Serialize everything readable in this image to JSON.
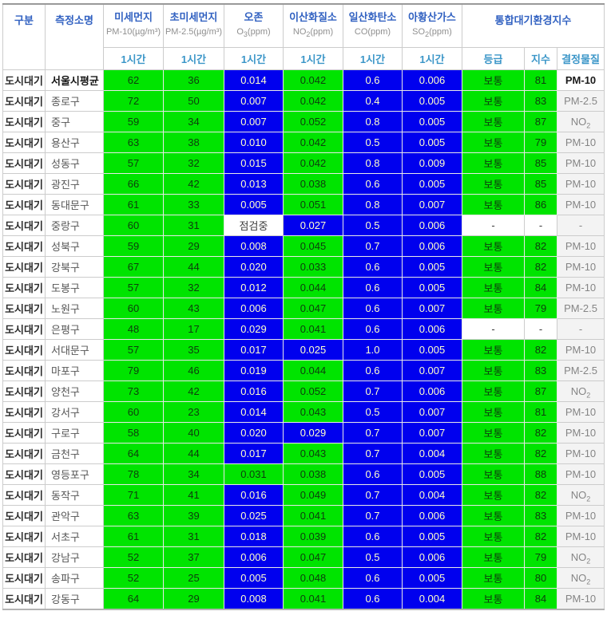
{
  "header": {
    "category": "구분",
    "station": "측정소명",
    "pollutants": [
      {
        "label": "미세먼지",
        "unit": "PM-10(µg/m³)"
      },
      {
        "label": "초미세먼지",
        "unit": "PM-2.5(µg/m³)"
      },
      {
        "label": "오존",
        "unit": "O3(ppm)"
      },
      {
        "label": "이산화질소",
        "unit": "NO2(ppm)"
      },
      {
        "label": "일산화탄소",
        "unit": "CO(ppm)"
      },
      {
        "label": "아황산가스",
        "unit": "SO2(ppm)"
      }
    ],
    "cai_group": "통합대기환경지수",
    "hour": "1시간",
    "grade": "등급",
    "index": "지수",
    "determinant": "결정물질"
  },
  "colors": {
    "good_bg": "#0000ee",
    "moderate_bg": "#00e400",
    "text_on_good": "#ffffcc",
    "text_on_moderate": "#0d3d0d",
    "header_blue": "#3161c1",
    "subheader_blue": "#3b96c8"
  },
  "status_text": {
    "checking": "점검중",
    "none": "-",
    "moderate": "보통"
  },
  "rows": [
    {
      "category": "도시대기",
      "station": "서울시평균",
      "bold": true,
      "cells": [
        {
          "v": "62",
          "c": "g"
        },
        {
          "v": "36",
          "c": "g"
        },
        {
          "v": "0.014",
          "c": "b"
        },
        {
          "v": "0.042",
          "c": "g"
        },
        {
          "v": "0.6",
          "c": "b"
        },
        {
          "v": "0.006",
          "c": "b"
        }
      ],
      "grade": {
        "v": "보통",
        "c": "g"
      },
      "index": {
        "v": "81",
        "c": "g"
      },
      "det": "PM-10"
    },
    {
      "category": "도시대기",
      "station": "종로구",
      "bold": false,
      "cells": [
        {
          "v": "72",
          "c": "g"
        },
        {
          "v": "50",
          "c": "g"
        },
        {
          "v": "0.007",
          "c": "b"
        },
        {
          "v": "0.042",
          "c": "g"
        },
        {
          "v": "0.4",
          "c": "b"
        },
        {
          "v": "0.005",
          "c": "b"
        }
      ],
      "grade": {
        "v": "보통",
        "c": "g"
      },
      "index": {
        "v": "83",
        "c": "g"
      },
      "det": "PM-2.5"
    },
    {
      "category": "도시대기",
      "station": "중구",
      "bold": false,
      "cells": [
        {
          "v": "59",
          "c": "g"
        },
        {
          "v": "34",
          "c": "g"
        },
        {
          "v": "0.007",
          "c": "b"
        },
        {
          "v": "0.052",
          "c": "g"
        },
        {
          "v": "0.8",
          "c": "b"
        },
        {
          "v": "0.005",
          "c": "b"
        }
      ],
      "grade": {
        "v": "보통",
        "c": "g"
      },
      "index": {
        "v": "87",
        "c": "g"
      },
      "det": "NO2"
    },
    {
      "category": "도시대기",
      "station": "용산구",
      "bold": false,
      "cells": [
        {
          "v": "63",
          "c": "g"
        },
        {
          "v": "38",
          "c": "g"
        },
        {
          "v": "0.010",
          "c": "b"
        },
        {
          "v": "0.042",
          "c": "g"
        },
        {
          "v": "0.5",
          "c": "b"
        },
        {
          "v": "0.005",
          "c": "b"
        }
      ],
      "grade": {
        "v": "보통",
        "c": "g"
      },
      "index": {
        "v": "79",
        "c": "g"
      },
      "det": "PM-10"
    },
    {
      "category": "도시대기",
      "station": "성동구",
      "bold": false,
      "cells": [
        {
          "v": "57",
          "c": "g"
        },
        {
          "v": "32",
          "c": "g"
        },
        {
          "v": "0.015",
          "c": "b"
        },
        {
          "v": "0.042",
          "c": "g"
        },
        {
          "v": "0.8",
          "c": "b"
        },
        {
          "v": "0.009",
          "c": "b"
        }
      ],
      "grade": {
        "v": "보통",
        "c": "g"
      },
      "index": {
        "v": "85",
        "c": "g"
      },
      "det": "PM-10"
    },
    {
      "category": "도시대기",
      "station": "광진구",
      "bold": false,
      "cells": [
        {
          "v": "66",
          "c": "g"
        },
        {
          "v": "42",
          "c": "g"
        },
        {
          "v": "0.013",
          "c": "b"
        },
        {
          "v": "0.038",
          "c": "g"
        },
        {
          "v": "0.6",
          "c": "b"
        },
        {
          "v": "0.005",
          "c": "b"
        }
      ],
      "grade": {
        "v": "보통",
        "c": "g"
      },
      "index": {
        "v": "85",
        "c": "g"
      },
      "det": "PM-10"
    },
    {
      "category": "도시대기",
      "station": "동대문구",
      "bold": false,
      "cells": [
        {
          "v": "61",
          "c": "g"
        },
        {
          "v": "33",
          "c": "g"
        },
        {
          "v": "0.005",
          "c": "b"
        },
        {
          "v": "0.051",
          "c": "g"
        },
        {
          "v": "0.8",
          "c": "b"
        },
        {
          "v": "0.007",
          "c": "b"
        }
      ],
      "grade": {
        "v": "보통",
        "c": "g"
      },
      "index": {
        "v": "86",
        "c": "g"
      },
      "det": "PM-10"
    },
    {
      "category": "도시대기",
      "station": "중랑구",
      "bold": false,
      "cells": [
        {
          "v": "60",
          "c": "g"
        },
        {
          "v": "31",
          "c": "g"
        },
        {
          "v": "점검중",
          "c": "w"
        },
        {
          "v": "0.027",
          "c": "b"
        },
        {
          "v": "0.5",
          "c": "b"
        },
        {
          "v": "0.006",
          "c": "b"
        }
      ],
      "grade": {
        "v": "-",
        "c": "w"
      },
      "index": {
        "v": "-",
        "c": "w"
      },
      "det": "-"
    },
    {
      "category": "도시대기",
      "station": "성북구",
      "bold": false,
      "cells": [
        {
          "v": "59",
          "c": "g"
        },
        {
          "v": "29",
          "c": "g"
        },
        {
          "v": "0.008",
          "c": "b"
        },
        {
          "v": "0.045",
          "c": "g"
        },
        {
          "v": "0.7",
          "c": "b"
        },
        {
          "v": "0.006",
          "c": "b"
        }
      ],
      "grade": {
        "v": "보통",
        "c": "g"
      },
      "index": {
        "v": "82",
        "c": "g"
      },
      "det": "PM-10"
    },
    {
      "category": "도시대기",
      "station": "강북구",
      "bold": false,
      "cells": [
        {
          "v": "67",
          "c": "g"
        },
        {
          "v": "44",
          "c": "g"
        },
        {
          "v": "0.020",
          "c": "b"
        },
        {
          "v": "0.033",
          "c": "g"
        },
        {
          "v": "0.6",
          "c": "b"
        },
        {
          "v": "0.005",
          "c": "b"
        }
      ],
      "grade": {
        "v": "보통",
        "c": "g"
      },
      "index": {
        "v": "82",
        "c": "g"
      },
      "det": "PM-10"
    },
    {
      "category": "도시대기",
      "station": "도봉구",
      "bold": false,
      "cells": [
        {
          "v": "57",
          "c": "g"
        },
        {
          "v": "32",
          "c": "g"
        },
        {
          "v": "0.012",
          "c": "b"
        },
        {
          "v": "0.044",
          "c": "g"
        },
        {
          "v": "0.6",
          "c": "b"
        },
        {
          "v": "0.005",
          "c": "b"
        }
      ],
      "grade": {
        "v": "보통",
        "c": "g"
      },
      "index": {
        "v": "84",
        "c": "g"
      },
      "det": "PM-10"
    },
    {
      "category": "도시대기",
      "station": "노원구",
      "bold": false,
      "cells": [
        {
          "v": "60",
          "c": "g"
        },
        {
          "v": "43",
          "c": "g"
        },
        {
          "v": "0.006",
          "c": "b"
        },
        {
          "v": "0.047",
          "c": "g"
        },
        {
          "v": "0.6",
          "c": "b"
        },
        {
          "v": "0.007",
          "c": "b"
        }
      ],
      "grade": {
        "v": "보통",
        "c": "g"
      },
      "index": {
        "v": "79",
        "c": "g"
      },
      "det": "PM-2.5"
    },
    {
      "category": "도시대기",
      "station": "은평구",
      "bold": false,
      "cells": [
        {
          "v": "48",
          "c": "g"
        },
        {
          "v": "17",
          "c": "g"
        },
        {
          "v": "0.029",
          "c": "b"
        },
        {
          "v": "0.041",
          "c": "g"
        },
        {
          "v": "0.6",
          "c": "b"
        },
        {
          "v": "0.006",
          "c": "b"
        }
      ],
      "grade": {
        "v": "-",
        "c": "w"
      },
      "index": {
        "v": "-",
        "c": "w"
      },
      "det": "-"
    },
    {
      "category": "도시대기",
      "station": "서대문구",
      "bold": false,
      "cells": [
        {
          "v": "57",
          "c": "g"
        },
        {
          "v": "35",
          "c": "g"
        },
        {
          "v": "0.017",
          "c": "b"
        },
        {
          "v": "0.025",
          "c": "b"
        },
        {
          "v": "1.0",
          "c": "b"
        },
        {
          "v": "0.005",
          "c": "b"
        }
      ],
      "grade": {
        "v": "보통",
        "c": "g"
      },
      "index": {
        "v": "82",
        "c": "g"
      },
      "det": "PM-10"
    },
    {
      "category": "도시대기",
      "station": "마포구",
      "bold": false,
      "cells": [
        {
          "v": "79",
          "c": "g"
        },
        {
          "v": "46",
          "c": "g"
        },
        {
          "v": "0.019",
          "c": "b"
        },
        {
          "v": "0.044",
          "c": "g"
        },
        {
          "v": "0.6",
          "c": "b"
        },
        {
          "v": "0.007",
          "c": "b"
        }
      ],
      "grade": {
        "v": "보통",
        "c": "g"
      },
      "index": {
        "v": "83",
        "c": "g"
      },
      "det": "PM-2.5"
    },
    {
      "category": "도시대기",
      "station": "양천구",
      "bold": false,
      "cells": [
        {
          "v": "73",
          "c": "g"
        },
        {
          "v": "42",
          "c": "g"
        },
        {
          "v": "0.016",
          "c": "b"
        },
        {
          "v": "0.052",
          "c": "g"
        },
        {
          "v": "0.7",
          "c": "b"
        },
        {
          "v": "0.006",
          "c": "b"
        }
      ],
      "grade": {
        "v": "보통",
        "c": "g"
      },
      "index": {
        "v": "87",
        "c": "g"
      },
      "det": "NO2"
    },
    {
      "category": "도시대기",
      "station": "강서구",
      "bold": false,
      "cells": [
        {
          "v": "60",
          "c": "g"
        },
        {
          "v": "23",
          "c": "g"
        },
        {
          "v": "0.014",
          "c": "b"
        },
        {
          "v": "0.043",
          "c": "g"
        },
        {
          "v": "0.5",
          "c": "b"
        },
        {
          "v": "0.007",
          "c": "b"
        }
      ],
      "grade": {
        "v": "보통",
        "c": "g"
      },
      "index": {
        "v": "81",
        "c": "g"
      },
      "det": "PM-10"
    },
    {
      "category": "도시대기",
      "station": "구로구",
      "bold": false,
      "cells": [
        {
          "v": "58",
          "c": "g"
        },
        {
          "v": "40",
          "c": "g"
        },
        {
          "v": "0.020",
          "c": "b"
        },
        {
          "v": "0.029",
          "c": "b"
        },
        {
          "v": "0.7",
          "c": "b"
        },
        {
          "v": "0.007",
          "c": "b"
        }
      ],
      "grade": {
        "v": "보통",
        "c": "g"
      },
      "index": {
        "v": "82",
        "c": "g"
      },
      "det": "PM-10"
    },
    {
      "category": "도시대기",
      "station": "금천구",
      "bold": false,
      "cells": [
        {
          "v": "64",
          "c": "g"
        },
        {
          "v": "44",
          "c": "g"
        },
        {
          "v": "0.017",
          "c": "b"
        },
        {
          "v": "0.043",
          "c": "g"
        },
        {
          "v": "0.7",
          "c": "b"
        },
        {
          "v": "0.004",
          "c": "b"
        }
      ],
      "grade": {
        "v": "보통",
        "c": "g"
      },
      "index": {
        "v": "82",
        "c": "g"
      },
      "det": "PM-10"
    },
    {
      "category": "도시대기",
      "station": "영등포구",
      "bold": false,
      "cells": [
        {
          "v": "78",
          "c": "g"
        },
        {
          "v": "34",
          "c": "g"
        },
        {
          "v": "0.031",
          "c": "g"
        },
        {
          "v": "0.038",
          "c": "g"
        },
        {
          "v": "0.6",
          "c": "b"
        },
        {
          "v": "0.005",
          "c": "b"
        }
      ],
      "grade": {
        "v": "보통",
        "c": "g"
      },
      "index": {
        "v": "88",
        "c": "g"
      },
      "det": "PM-10"
    },
    {
      "category": "도시대기",
      "station": "동작구",
      "bold": false,
      "cells": [
        {
          "v": "71",
          "c": "g"
        },
        {
          "v": "41",
          "c": "g"
        },
        {
          "v": "0.016",
          "c": "b"
        },
        {
          "v": "0.049",
          "c": "g"
        },
        {
          "v": "0.7",
          "c": "b"
        },
        {
          "v": "0.004",
          "c": "b"
        }
      ],
      "grade": {
        "v": "보통",
        "c": "g"
      },
      "index": {
        "v": "82",
        "c": "g"
      },
      "det": "NO2"
    },
    {
      "category": "도시대기",
      "station": "관악구",
      "bold": false,
      "cells": [
        {
          "v": "63",
          "c": "g"
        },
        {
          "v": "39",
          "c": "g"
        },
        {
          "v": "0.025",
          "c": "b"
        },
        {
          "v": "0.041",
          "c": "g"
        },
        {
          "v": "0.7",
          "c": "b"
        },
        {
          "v": "0.006",
          "c": "b"
        }
      ],
      "grade": {
        "v": "보통",
        "c": "g"
      },
      "index": {
        "v": "83",
        "c": "g"
      },
      "det": "PM-10"
    },
    {
      "category": "도시대기",
      "station": "서초구",
      "bold": false,
      "cells": [
        {
          "v": "61",
          "c": "g"
        },
        {
          "v": "31",
          "c": "g"
        },
        {
          "v": "0.018",
          "c": "b"
        },
        {
          "v": "0.039",
          "c": "g"
        },
        {
          "v": "0.6",
          "c": "b"
        },
        {
          "v": "0.005",
          "c": "b"
        }
      ],
      "grade": {
        "v": "보통",
        "c": "g"
      },
      "index": {
        "v": "82",
        "c": "g"
      },
      "det": "PM-10"
    },
    {
      "category": "도시대기",
      "station": "강남구",
      "bold": false,
      "cells": [
        {
          "v": "52",
          "c": "g"
        },
        {
          "v": "37",
          "c": "g"
        },
        {
          "v": "0.006",
          "c": "b"
        },
        {
          "v": "0.047",
          "c": "g"
        },
        {
          "v": "0.5",
          "c": "b"
        },
        {
          "v": "0.006",
          "c": "b"
        }
      ],
      "grade": {
        "v": "보통",
        "c": "g"
      },
      "index": {
        "v": "79",
        "c": "g"
      },
      "det": "NO2"
    },
    {
      "category": "도시대기",
      "station": "송파구",
      "bold": false,
      "cells": [
        {
          "v": "52",
          "c": "g"
        },
        {
          "v": "25",
          "c": "g"
        },
        {
          "v": "0.005",
          "c": "b"
        },
        {
          "v": "0.048",
          "c": "g"
        },
        {
          "v": "0.6",
          "c": "b"
        },
        {
          "v": "0.005",
          "c": "b"
        }
      ],
      "grade": {
        "v": "보통",
        "c": "g"
      },
      "index": {
        "v": "80",
        "c": "g"
      },
      "det": "NO2"
    },
    {
      "category": "도시대기",
      "station": "강동구",
      "bold": false,
      "cells": [
        {
          "v": "64",
          "c": "g"
        },
        {
          "v": "29",
          "c": "g"
        },
        {
          "v": "0.008",
          "c": "b"
        },
        {
          "v": "0.041",
          "c": "g"
        },
        {
          "v": "0.6",
          "c": "b"
        },
        {
          "v": "0.004",
          "c": "b"
        }
      ],
      "grade": {
        "v": "보통",
        "c": "g"
      },
      "index": {
        "v": "84",
        "c": "g"
      },
      "det": "PM-10"
    }
  ]
}
